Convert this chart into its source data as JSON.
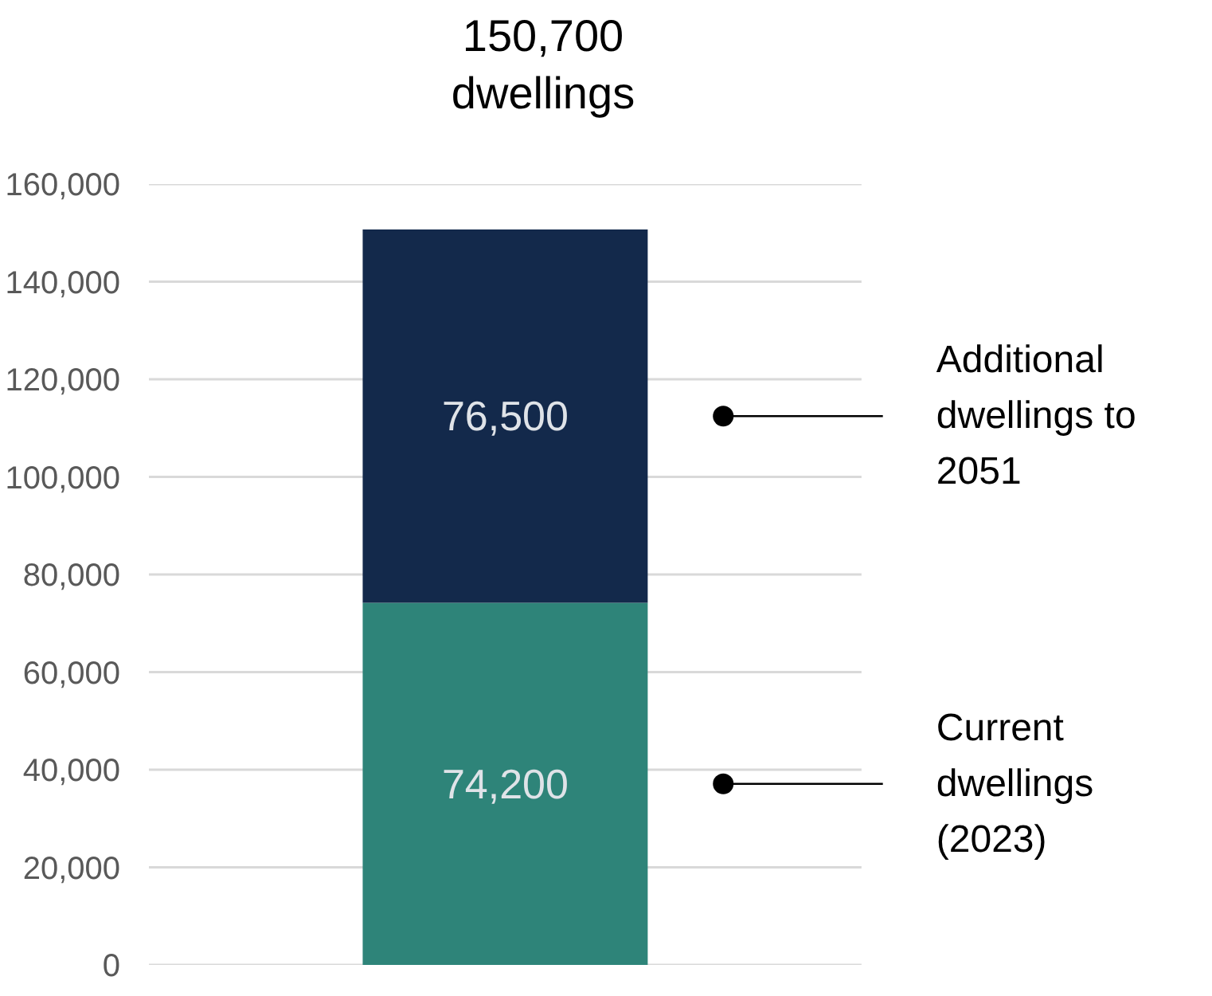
{
  "chart_data": {
    "type": "bar",
    "stacked": true,
    "categories": [
      null
    ],
    "series": [
      {
        "name": "Current dwellings (2023)",
        "color": "#2e8479",
        "values": [
          74200
        ],
        "value_labels": [
          "74,200"
        ]
      },
      {
        "name": "Additional dwellings to 2051",
        "color": "#13294b",
        "values": [
          76500
        ],
        "value_labels": [
          "76,500"
        ]
      }
    ],
    "totals": [
      "150,700\ndwellings"
    ],
    "ylim": [
      0,
      160000
    ],
    "yticks": [
      {
        "value": 0,
        "label": "0"
      },
      {
        "value": 20000,
        "label": "20,000"
      },
      {
        "value": 40000,
        "label": "40,000"
      },
      {
        "value": 60000,
        "label": "60,000"
      },
      {
        "value": 80000,
        "label": "80,000"
      },
      {
        "value": 100000,
        "label": "100,000"
      },
      {
        "value": 120000,
        "label": "120,000"
      },
      {
        "value": 140000,
        "label": "140,000"
      },
      {
        "value": 160000,
        "label": "160,000"
      }
    ],
    "grid": "y",
    "legend": "right"
  }
}
